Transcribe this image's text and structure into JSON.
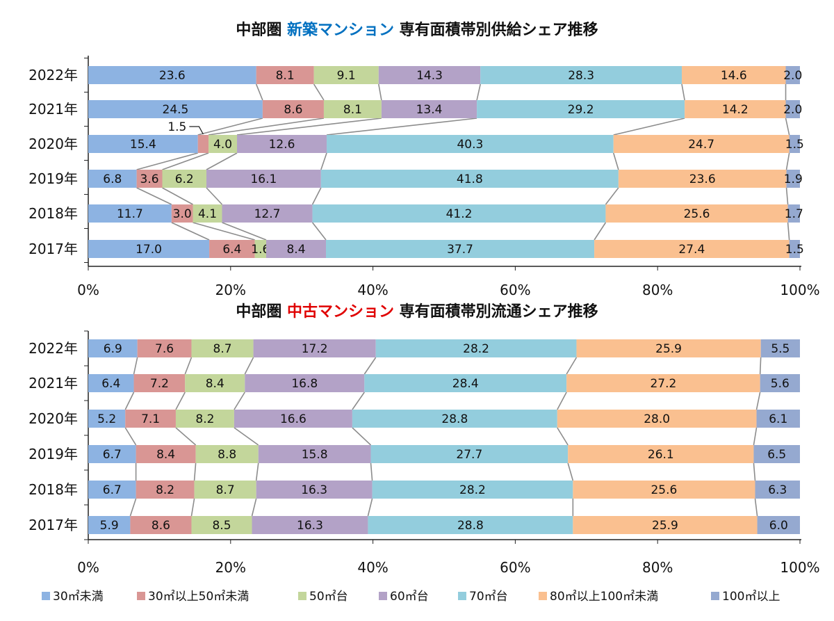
{
  "colors": [
    "#8db3e2",
    "#d99694",
    "#c3d69b",
    "#b3a2c7",
    "#93cddd",
    "#fac090",
    "#95a9d0"
  ],
  "legend": [
    "30㎡未満",
    "30㎡以上50㎡未満",
    "50㎡台",
    "60㎡台",
    "70㎡台",
    "80㎡以上100㎡未満",
    "100㎡以上"
  ],
  "chart_data": [
    {
      "type": "bar",
      "orientation": "horizontal-stacked-100",
      "title_parts": [
        {
          "text": "中部圏 ",
          "color": "#111111"
        },
        {
          "text": "新築マンション",
          "color": "#0070c0"
        },
        {
          "text": " 専有面積帯別供給シェア推移",
          "color": "#111111"
        }
      ],
      "categories": [
        "2022年",
        "2021年",
        "2020年",
        "2019年",
        "2018年",
        "2017年"
      ],
      "xlim": [
        0,
        100
      ],
      "xticks": [
        "0%",
        "20%",
        "40%",
        "60%",
        "80%",
        "100%"
      ],
      "series": [
        {
          "name": "30㎡未満",
          "values": [
            23.6,
            24.5,
            15.4,
            6.8,
            11.7,
            17.0
          ]
        },
        {
          "name": "30㎡以上50㎡未満",
          "values": [
            8.1,
            8.6,
            1.5,
            3.6,
            3.0,
            6.4
          ]
        },
        {
          "name": "50㎡台",
          "values": [
            9.1,
            8.1,
            4.0,
            6.2,
            4.1,
            1.6
          ]
        },
        {
          "name": "60㎡台",
          "values": [
            14.3,
            13.4,
            12.6,
            16.1,
            12.7,
            8.4
          ]
        },
        {
          "name": "70㎡台",
          "values": [
            28.3,
            29.2,
            40.3,
            41.8,
            41.2,
            37.7
          ]
        },
        {
          "name": "80㎡以上100㎡未満",
          "values": [
            14.6,
            14.2,
            24.7,
            23.6,
            25.6,
            27.4
          ]
        },
        {
          "name": "100㎡以上",
          "values": [
            2.0,
            2.0,
            1.5,
            1.9,
            1.7,
            1.5
          ]
        }
      ],
      "callout": {
        "category": "2020年",
        "series": 1,
        "label": "1.5"
      }
    },
    {
      "type": "bar",
      "orientation": "horizontal-stacked-100",
      "title_parts": [
        {
          "text": "中部圏 ",
          "color": "#111111"
        },
        {
          "text": "中古マンション",
          "color": "#e00000"
        },
        {
          "text": " 専有面積帯別流通シェア推移",
          "color": "#111111"
        }
      ],
      "categories": [
        "2022年",
        "2021年",
        "2020年",
        "2019年",
        "2018年",
        "2017年"
      ],
      "xlim": [
        0,
        100
      ],
      "xticks": [
        "0%",
        "20%",
        "40%",
        "60%",
        "80%",
        "100%"
      ],
      "series": [
        {
          "name": "30㎡未満",
          "values": [
            6.9,
            6.4,
            5.2,
            6.7,
            6.7,
            5.9
          ]
        },
        {
          "name": "30㎡以上50㎡未満",
          "values": [
            7.6,
            7.2,
            7.1,
            8.4,
            8.2,
            8.6
          ]
        },
        {
          "name": "50㎡台",
          "values": [
            8.7,
            8.4,
            8.2,
            8.8,
            8.7,
            8.5
          ]
        },
        {
          "name": "60㎡台",
          "values": [
            17.2,
            16.8,
            16.6,
            15.8,
            16.3,
            16.3
          ]
        },
        {
          "name": "70㎡台",
          "values": [
            28.2,
            28.4,
            28.8,
            27.7,
            28.2,
            28.8
          ]
        },
        {
          "name": "80㎡以上100㎡未満",
          "values": [
            25.9,
            27.2,
            28.0,
            26.1,
            25.6,
            25.9
          ]
        },
        {
          "name": "100㎡以上",
          "values": [
            5.5,
            5.6,
            6.1,
            6.5,
            6.3,
            6.0
          ]
        }
      ]
    }
  ]
}
